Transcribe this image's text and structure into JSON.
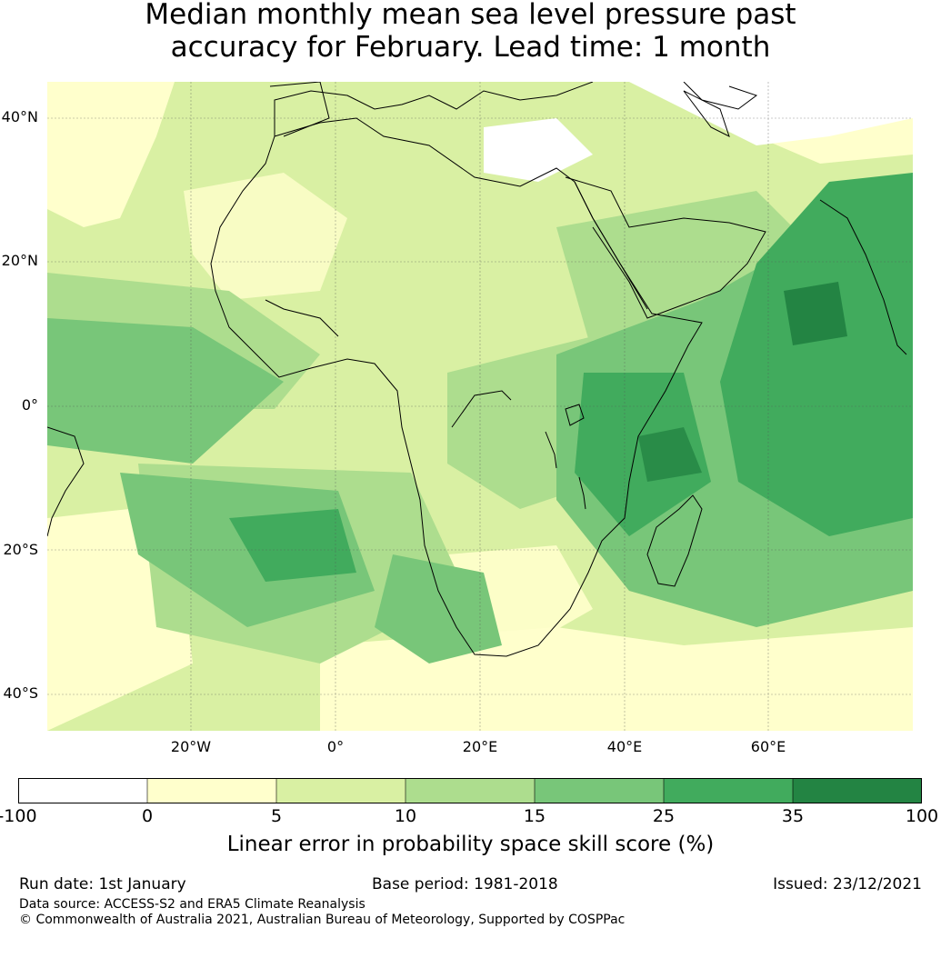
{
  "title": {
    "line1": "Median monthly mean sea level pressure past",
    "line2": "accuracy for February. Lead time: 1 month"
  },
  "map": {
    "region": "Africa",
    "lat_labels": [
      "40°N",
      "20°N",
      "0°",
      "20°S",
      "40°S"
    ],
    "lon_labels": [
      "20°W",
      "0°",
      "20°E",
      "40°E",
      "60°E"
    ],
    "colors": [
      "#ffffff",
      "#ffffcc",
      "#d9f0a3",
      "#addd8e",
      "#78c679",
      "#41ab5d",
      "#238443"
    ]
  },
  "colorbar": {
    "ticks": [
      "-100",
      "0",
      "5",
      "10",
      "15",
      "25",
      "35",
      "100"
    ],
    "label": "Linear error in probability space skill score (%)"
  },
  "footer": {
    "run_date": "Run date: 1st January",
    "base_period": "Base period: 1981-2018",
    "issued": "Issued: 23/12/2021",
    "data_source": "Data source: ACCESS-S2 and ERA5 Climate Reanalysis",
    "copyright": "© Commonwealth of Australia 2021, Australian Bureau of Meteorology, Supported by COSPPac"
  }
}
